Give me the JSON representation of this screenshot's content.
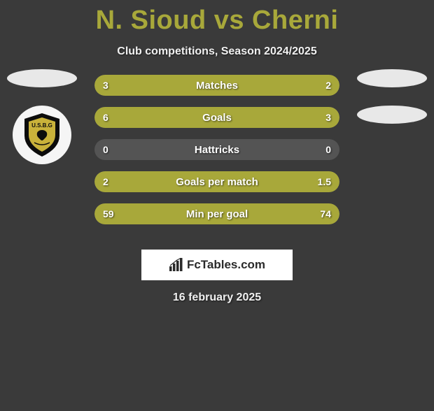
{
  "title": "N. Sioud vs Cherni",
  "subtitle": "Club competitions, Season 2024/2025",
  "date": "16 february 2025",
  "watermark": "FcTables.com",
  "colors": {
    "background": "#3a3a3a",
    "accent": "#a8a83a",
    "bar_track": "#545454",
    "bar_fill": "#a8a83a",
    "text_light": "#f0f0f0",
    "avatar_ellipse": "#e8e8e8",
    "badge_bg": "#f5f5f5",
    "watermark_bg": "#ffffff",
    "watermark_text": "#2a2a2a"
  },
  "badge": {
    "outer": "#0c0c0c",
    "inner": "#c9b23a",
    "text": "U.S.B.G"
  },
  "rows": [
    {
      "label": "Matches",
      "left_val": "3",
      "right_val": "2",
      "left_pct": 60,
      "right_pct": 40
    },
    {
      "label": "Goals",
      "left_val": "6",
      "right_val": "3",
      "left_pct": 66.7,
      "right_pct": 33.3
    },
    {
      "label": "Hattricks",
      "left_val": "0",
      "right_val": "0",
      "left_pct": 0,
      "right_pct": 0
    },
    {
      "label": "Goals per match",
      "left_val": "2",
      "right_val": "1.5",
      "left_pct": 57.1,
      "right_pct": 42.9
    },
    {
      "label": "Min per goal",
      "left_val": "59",
      "right_val": "74",
      "left_pct": 44.4,
      "right_pct": 55.6
    }
  ]
}
